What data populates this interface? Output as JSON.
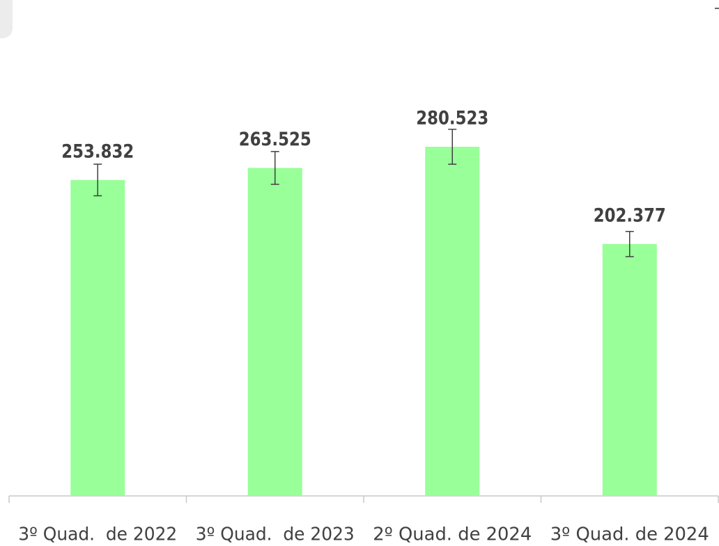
{
  "chart_data": {
    "type": "bar",
    "categories": [
      "3º Quad.  de 2022",
      "3º Quad.  de 2023",
      "2º Quad. de 2024",
      "3º Quad. de 2024"
    ],
    "values": [
      253832,
      263525,
      280523,
      202377
    ],
    "value_labels": [
      "253.832",
      "263.525",
      "280.523",
      "202.377"
    ],
    "errors": [
      12692,
      13176,
      14026,
      10119
    ],
    "color": "#99ff99",
    "ylim": [
      0,
      380000
    ]
  }
}
